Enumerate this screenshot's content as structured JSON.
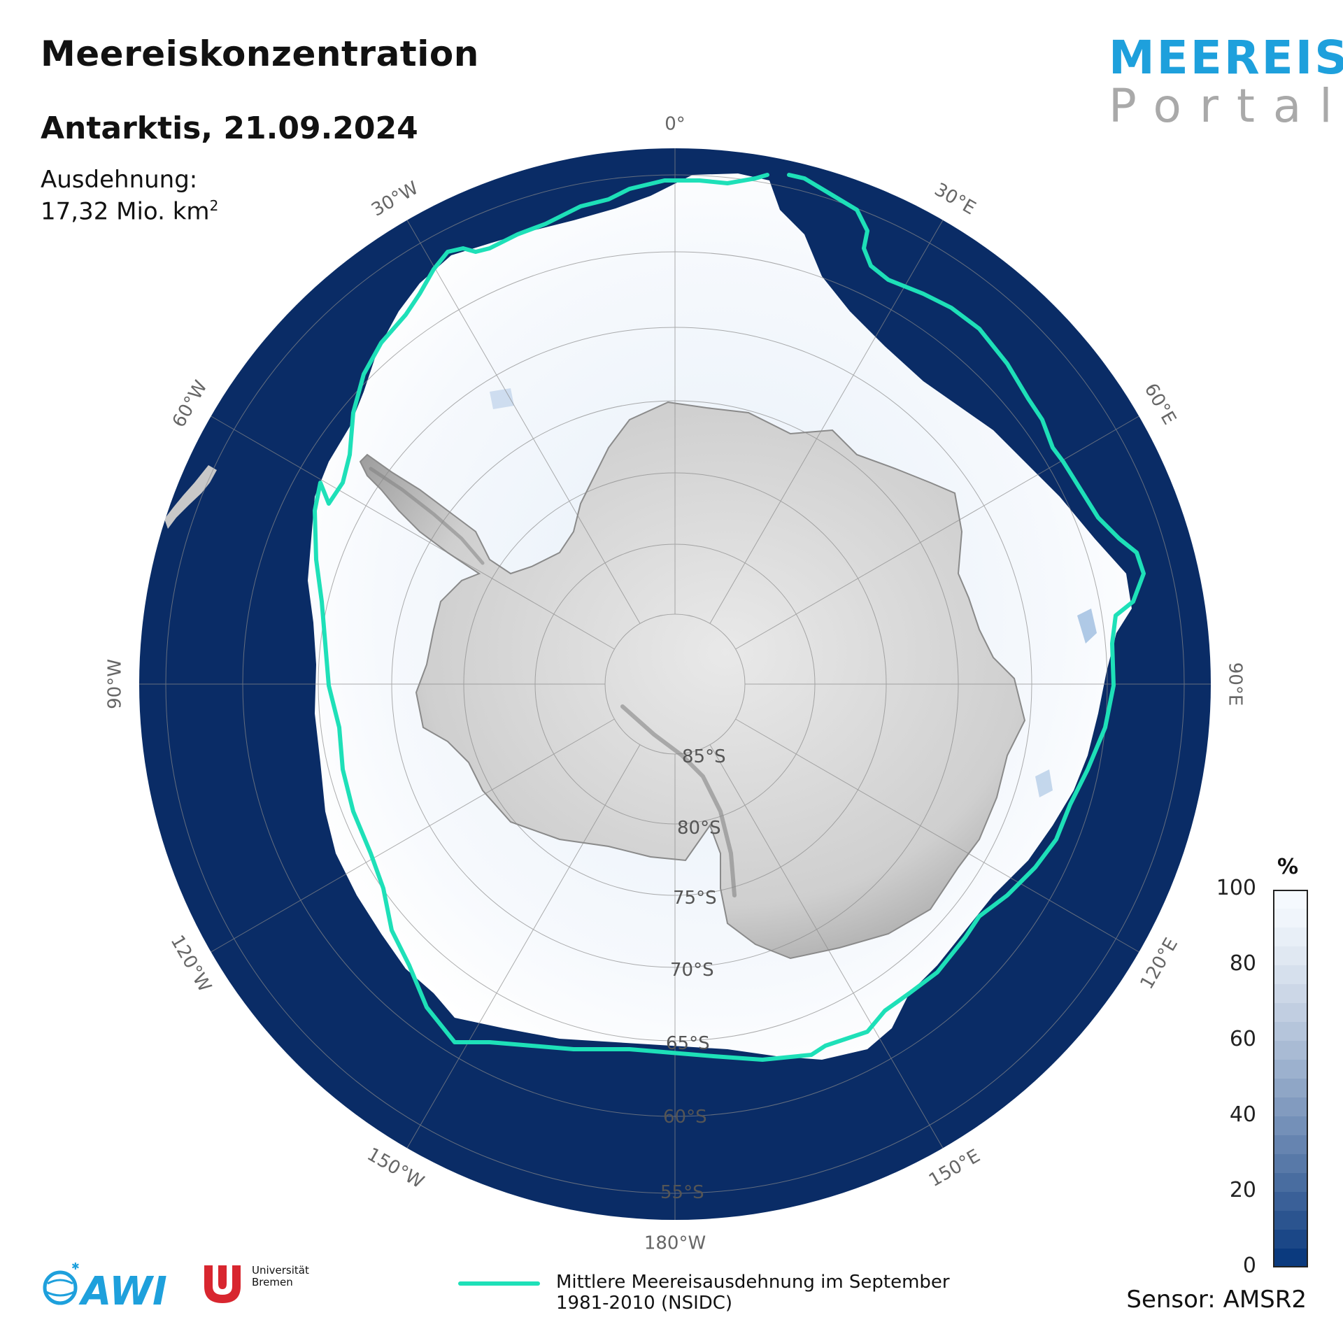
{
  "header": {
    "title": "Meereiskonzentration",
    "subtitle": "Antarktis, 21.09.2024",
    "extent_label": "Ausdehnung:",
    "extent_value": "17,32 Mio. km",
    "extent_unit_sup": "2"
  },
  "logo": {
    "line1": "MEEREIS",
    "line2": "Portal"
  },
  "map": {
    "projection": "south polar stereographic",
    "colors": {
      "ocean": "#0a2c66",
      "ice": "#f4f8fd",
      "land": "#b4b4b4",
      "mean_edge": "#1ee0b8",
      "grid": "#8a8a8a"
    },
    "longitude_labels": [
      "0°",
      "30°E",
      "60°E",
      "90°E",
      "120°E",
      "150°E",
      "180°W",
      "150°W",
      "120°W",
      "90°W",
      "60°W",
      "30°W"
    ],
    "latitude_labels": [
      "85°S",
      "80°S",
      "75°S",
      "70°S",
      "65°S",
      "60°S",
      "55°S"
    ]
  },
  "colorbar": {
    "title": "%",
    "ticks": [
      "100",
      "80",
      "60",
      "40",
      "20",
      "0"
    ],
    "color_low": "#0b3a7e",
    "color_high": "#f5f9fe"
  },
  "legend": {
    "line1": "Mittlere Meereisausdehnung im September",
    "line2": "1981-2010 (NSIDC)"
  },
  "footer": {
    "sensor": "Sensor: AMSR2",
    "awi_text": "AWI",
    "uni_line1": "Universität",
    "uni_line2": "Bremen"
  }
}
